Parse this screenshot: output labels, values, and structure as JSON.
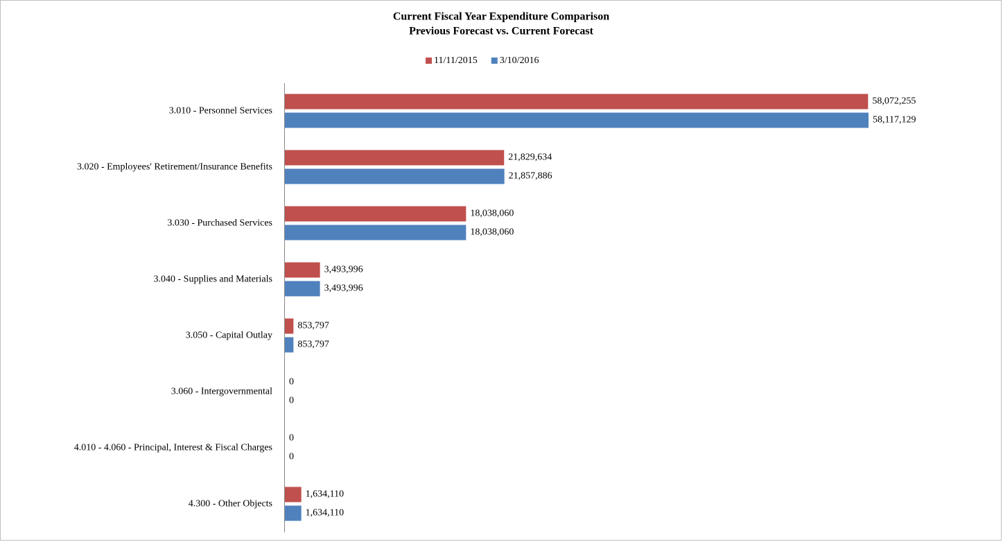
{
  "chart_data": {
    "type": "hbar",
    "title": "Current Fiscal Year Expenditure Comparison",
    "subtitle": "Previous Forecast vs. Current Forecast",
    "categories": [
      "3.010 - Personnel Services",
      "3.020 - Employees' Retirement/Insurance Benefits",
      "3.030 - Purchased Services",
      "3.040 - Supplies and Materials",
      "3.050 - Capital Outlay",
      "3.060 - Intergovernmental",
      "4.010 - 4.060 - Principal, Interest & Fiscal Charges",
      "4.300 - Other Objects"
    ],
    "series": [
      {
        "name": "11/11/2015",
        "color": "#c0504d",
        "values": [
          58072255,
          21829634,
          18038060,
          3493996,
          853797,
          0,
          0,
          1634110
        ],
        "value_labels": [
          "58,072,255",
          "21,829,634",
          "18,038,060",
          "3,493,996",
          "853,797",
          "0",
          "0",
          "1,634,110"
        ]
      },
      {
        "name": "3/10/2016",
        "color": "#4f81bd",
        "values": [
          58117129,
          21857886,
          18038060,
          3493996,
          853797,
          0,
          0,
          1634110
        ],
        "value_labels": [
          "58,117,129",
          "21,857,886",
          "18,038,060",
          "3,493,996",
          "853,797",
          "0",
          "0",
          "1,634,110"
        ]
      }
    ],
    "legend": "top"
  }
}
